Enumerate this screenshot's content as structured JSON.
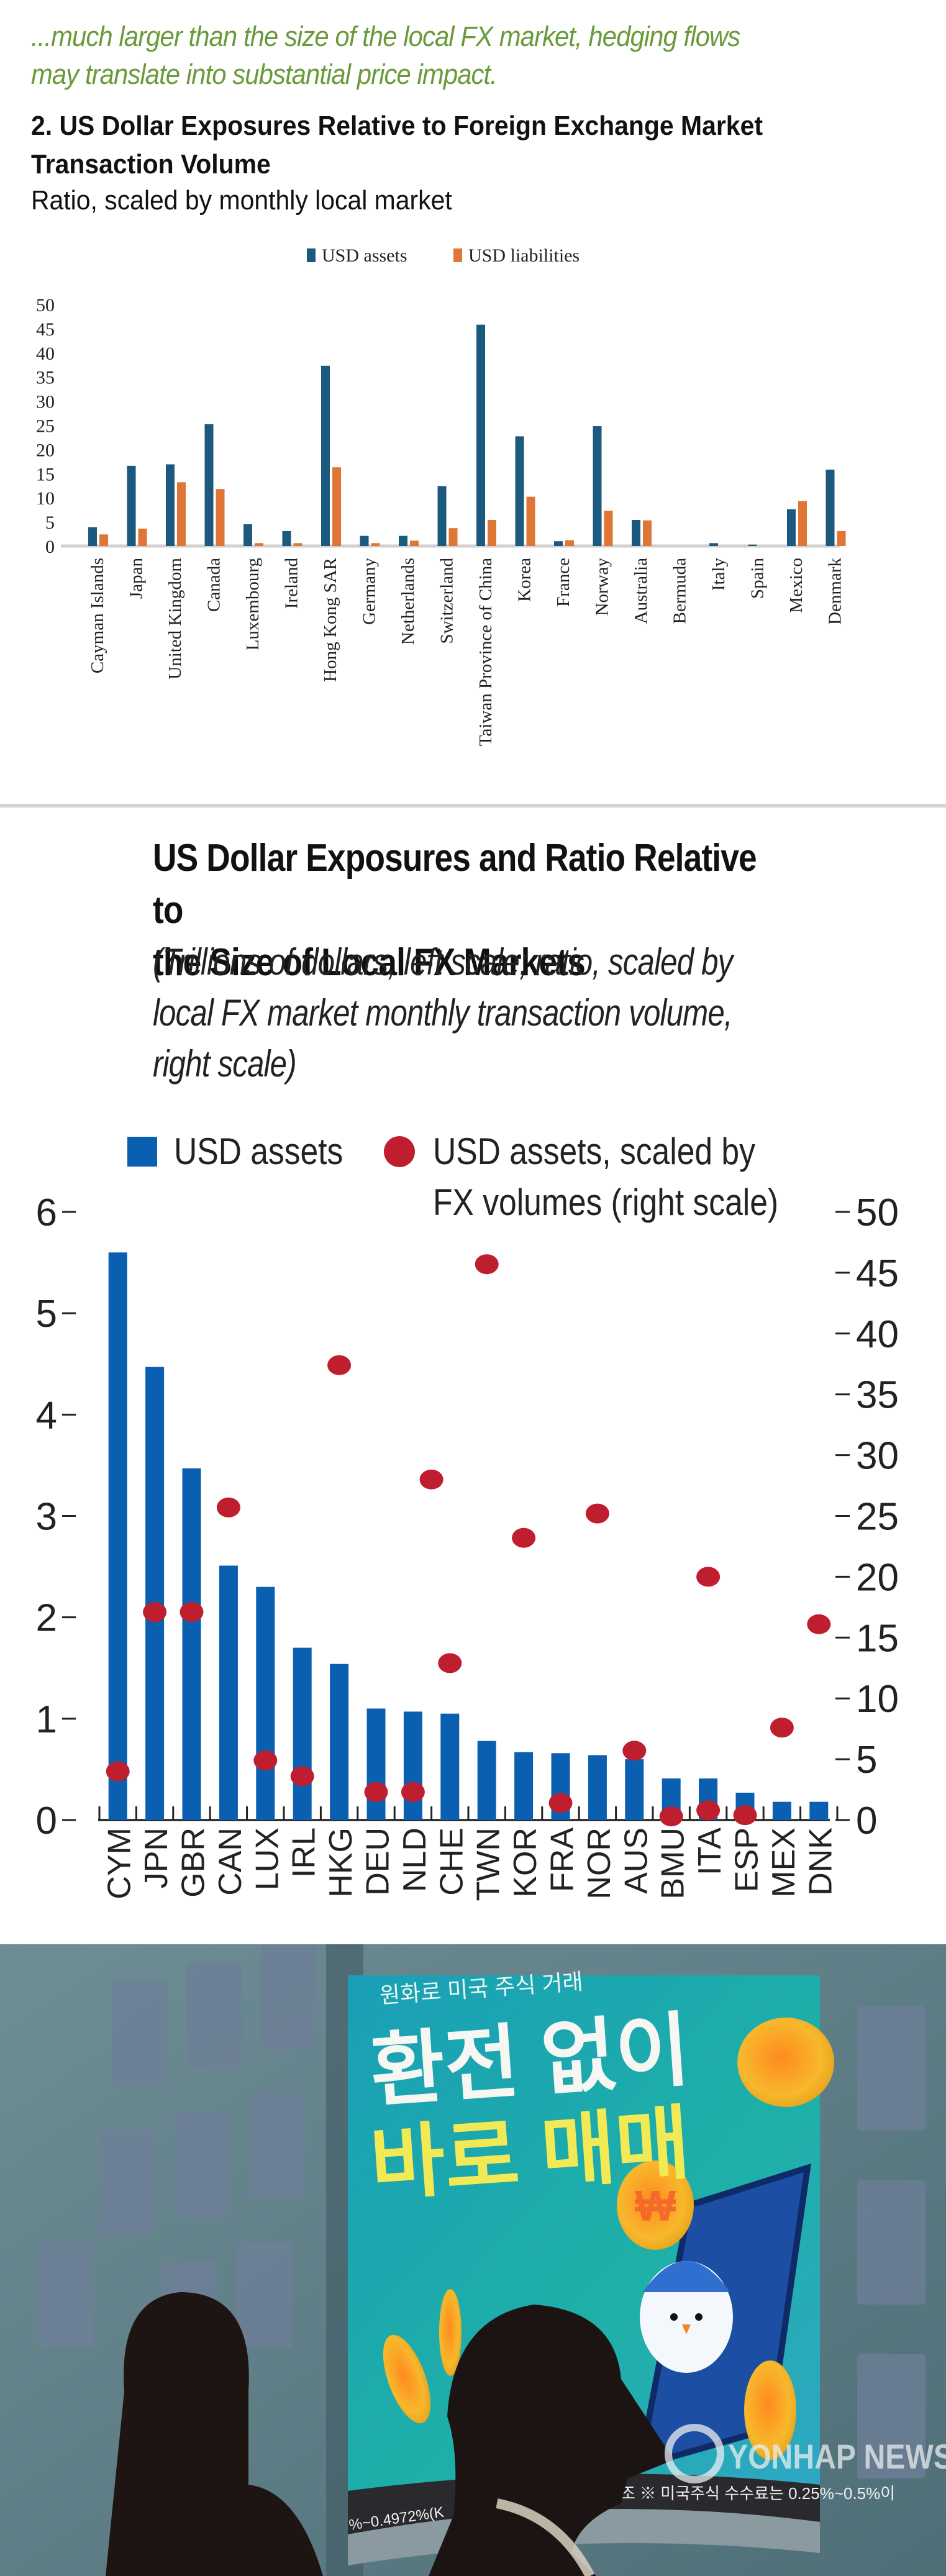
{
  "intro_text": [
    "...much larger than the size of the local FX market, hedging flows",
    "may translate into substantial price impact."
  ],
  "chart_data": [
    {
      "type": "bar",
      "title": "2. US Dollar Exposures Relative to Foreign Exchange Market Transaction Volume",
      "title_lines": [
        "2. US Dollar Exposures Relative to Foreign Exchange Market",
        "Transaction Volume"
      ],
      "subtitle": "Ratio, scaled by monthly local market",
      "xlabel": "",
      "ylabel": "",
      "ylim": [
        0,
        50
      ],
      "yticks": [
        0,
        5,
        10,
        15,
        20,
        25,
        30,
        35,
        40,
        45,
        50
      ],
      "grid": false,
      "legend_position": "top-center",
      "categories": [
        "Cayman Islands",
        "Japan",
        "United Kingdom",
        "Canada",
        "Luxembourg",
        "Ireland",
        "Hong Kong SAR",
        "Germany",
        "Netherlands",
        "Switzerland",
        "Taiwan Province of China",
        "Korea",
        "France",
        "Norway",
        "Australia",
        "Bermuda",
        "Italy",
        "Spain",
        "Mexico",
        "Denmark"
      ],
      "series": [
        {
          "name": "USD assets",
          "color": "#1b5a7e",
          "values": [
            3.9,
            16.6,
            16.9,
            25.2,
            4.5,
            3.1,
            37.3,
            2.1,
            2.1,
            12.4,
            45.8,
            22.7,
            1.0,
            24.8,
            5.4,
            0,
            0.6,
            0.3,
            7.6,
            15.8
          ]
        },
        {
          "name": "USD liabilities",
          "color": "#e07636",
          "values": [
            2.4,
            3.6,
            13.2,
            11.8,
            0.6,
            0.6,
            16.3,
            0.6,
            1.1,
            3.7,
            5.4,
            10.2,
            1.2,
            7.3,
            5.3,
            0,
            0,
            0,
            9.3,
            3.1
          ]
        }
      ]
    },
    {
      "type": "bar",
      "title": "US Dollar Exposures and Ratio Relative to the Size of Local FX Markets",
      "title_lines": [
        "US Dollar Exposures and Ratio Relative to",
        "the Size of Local FX Markets"
      ],
      "subtitle": "(Trillions of dollars, left scale; ratio, scaled by local FX market monthly transaction volume, right scale)",
      "subtitle_lines": [
        "(Trillions of dollars, left scale; ratio, scaled by",
        "local FX market monthly transaction volume,",
        "right scale)"
      ],
      "ylim_left": [
        0,
        6
      ],
      "yticks_left": [
        0,
        1,
        2,
        3,
        4,
        5,
        6
      ],
      "ylim_right": [
        0,
        50
      ],
      "yticks_right": [
        0,
        5,
        10,
        15,
        20,
        25,
        30,
        35,
        40,
        45,
        50
      ],
      "grid": false,
      "legend_position": "top",
      "categories": [
        "CYM",
        "JPN",
        "GBR",
        "CAN",
        "LUX",
        "IRL",
        "HKG",
        "DEU",
        "NLD",
        "CHE",
        "TWN",
        "KOR",
        "FRA",
        "NOR",
        "AUS",
        "BMU",
        "ITA",
        "ESP",
        "MEX",
        "DNK"
      ],
      "series": [
        {
          "name": "USD assets",
          "type": "bar",
          "axis": "left",
          "color": "#0b5fb0",
          "values": [
            5.6,
            4.47,
            3.47,
            2.51,
            2.3,
            1.7,
            1.54,
            1.1,
            1.07,
            1.05,
            0.78,
            0.67,
            0.66,
            0.64,
            0.6,
            0.41,
            0.41,
            0.27,
            0.18,
            0.18
          ]
        },
        {
          "name": "USD assets, scaled by FX volumes (right scale)",
          "legend_lines": [
            "USD assets, scaled by",
            "FX volumes (right scale)"
          ],
          "type": "scatter",
          "axis": "right",
          "color": "#bf1e2e",
          "values": [
            4.0,
            17.1,
            17.1,
            25.7,
            4.9,
            3.6,
            37.4,
            2.3,
            2.3,
            12.9,
            45.7,
            23.2,
            1.4,
            25.2,
            5.7,
            0.3,
            0.8,
            0.4,
            7.6,
            16.1
          ]
        },
        {
          "name": "unlabeled point",
          "type": "scatter",
          "axis": "right",
          "color": "#bf1e2e",
          "x_between": [
            "NLD",
            "CHE"
          ],
          "values": [
            28.0
          ]
        },
        {
          "name": "ITA upper point",
          "type": "scatter",
          "axis": "right",
          "color": "#bf1e2e",
          "x_category": "ITA",
          "values": [
            20.0
          ]
        }
      ]
    }
  ],
  "photo": {
    "billboard_small": "원화로 미국 주식 거래",
    "billboard_line1": "환전 없이",
    "billboard_line2": "바로 매매",
    "ticker_left": "%~0.4972%(K",
    "ticker_right": "참조 ※ 미국주식 수수료는 0.25%~0.5%이",
    "watermark": "YONHAP NEWS",
    "colors": {
      "screen": "#1fa5b0",
      "headline_white": "#f6f7f3",
      "headline_yellow": "#f2ea55"
    }
  }
}
